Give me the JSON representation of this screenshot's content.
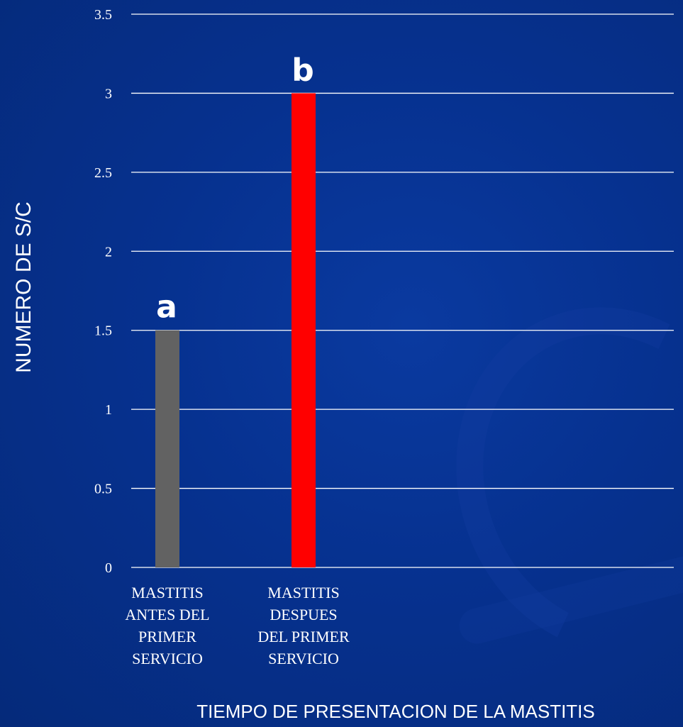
{
  "colors": {
    "background": "#06318f",
    "gridline": "#ffffff",
    "text": "#ffffff"
  },
  "chart_data": {
    "type": "bar",
    "categories": [
      "MASTITIS\nANTES DEL\nPRIMER\nSERVICIO",
      "MASTITIS\nDESPUES\nDEL PRIMER\nSERVICIO"
    ],
    "values": [
      1.5,
      3
    ],
    "bar_colors": [
      "#626262",
      "#ff0000"
    ],
    "bar_labels": [
      "a",
      "b"
    ],
    "title": "",
    "xlabel": "TIEMPO DE PRESENTACION DE LA MASTITIS",
    "ylabel": "NUMERO DE S/C",
    "ylim": [
      0,
      3.5
    ],
    "yticks": [
      0,
      0.5,
      1,
      1.5,
      2,
      2.5,
      3,
      3.5
    ],
    "ytick_labels": [
      "0",
      "0.5",
      "1",
      "1.5",
      "2",
      "2.5",
      "3",
      "3.5"
    ],
    "grid": true,
    "legend": "none"
  }
}
